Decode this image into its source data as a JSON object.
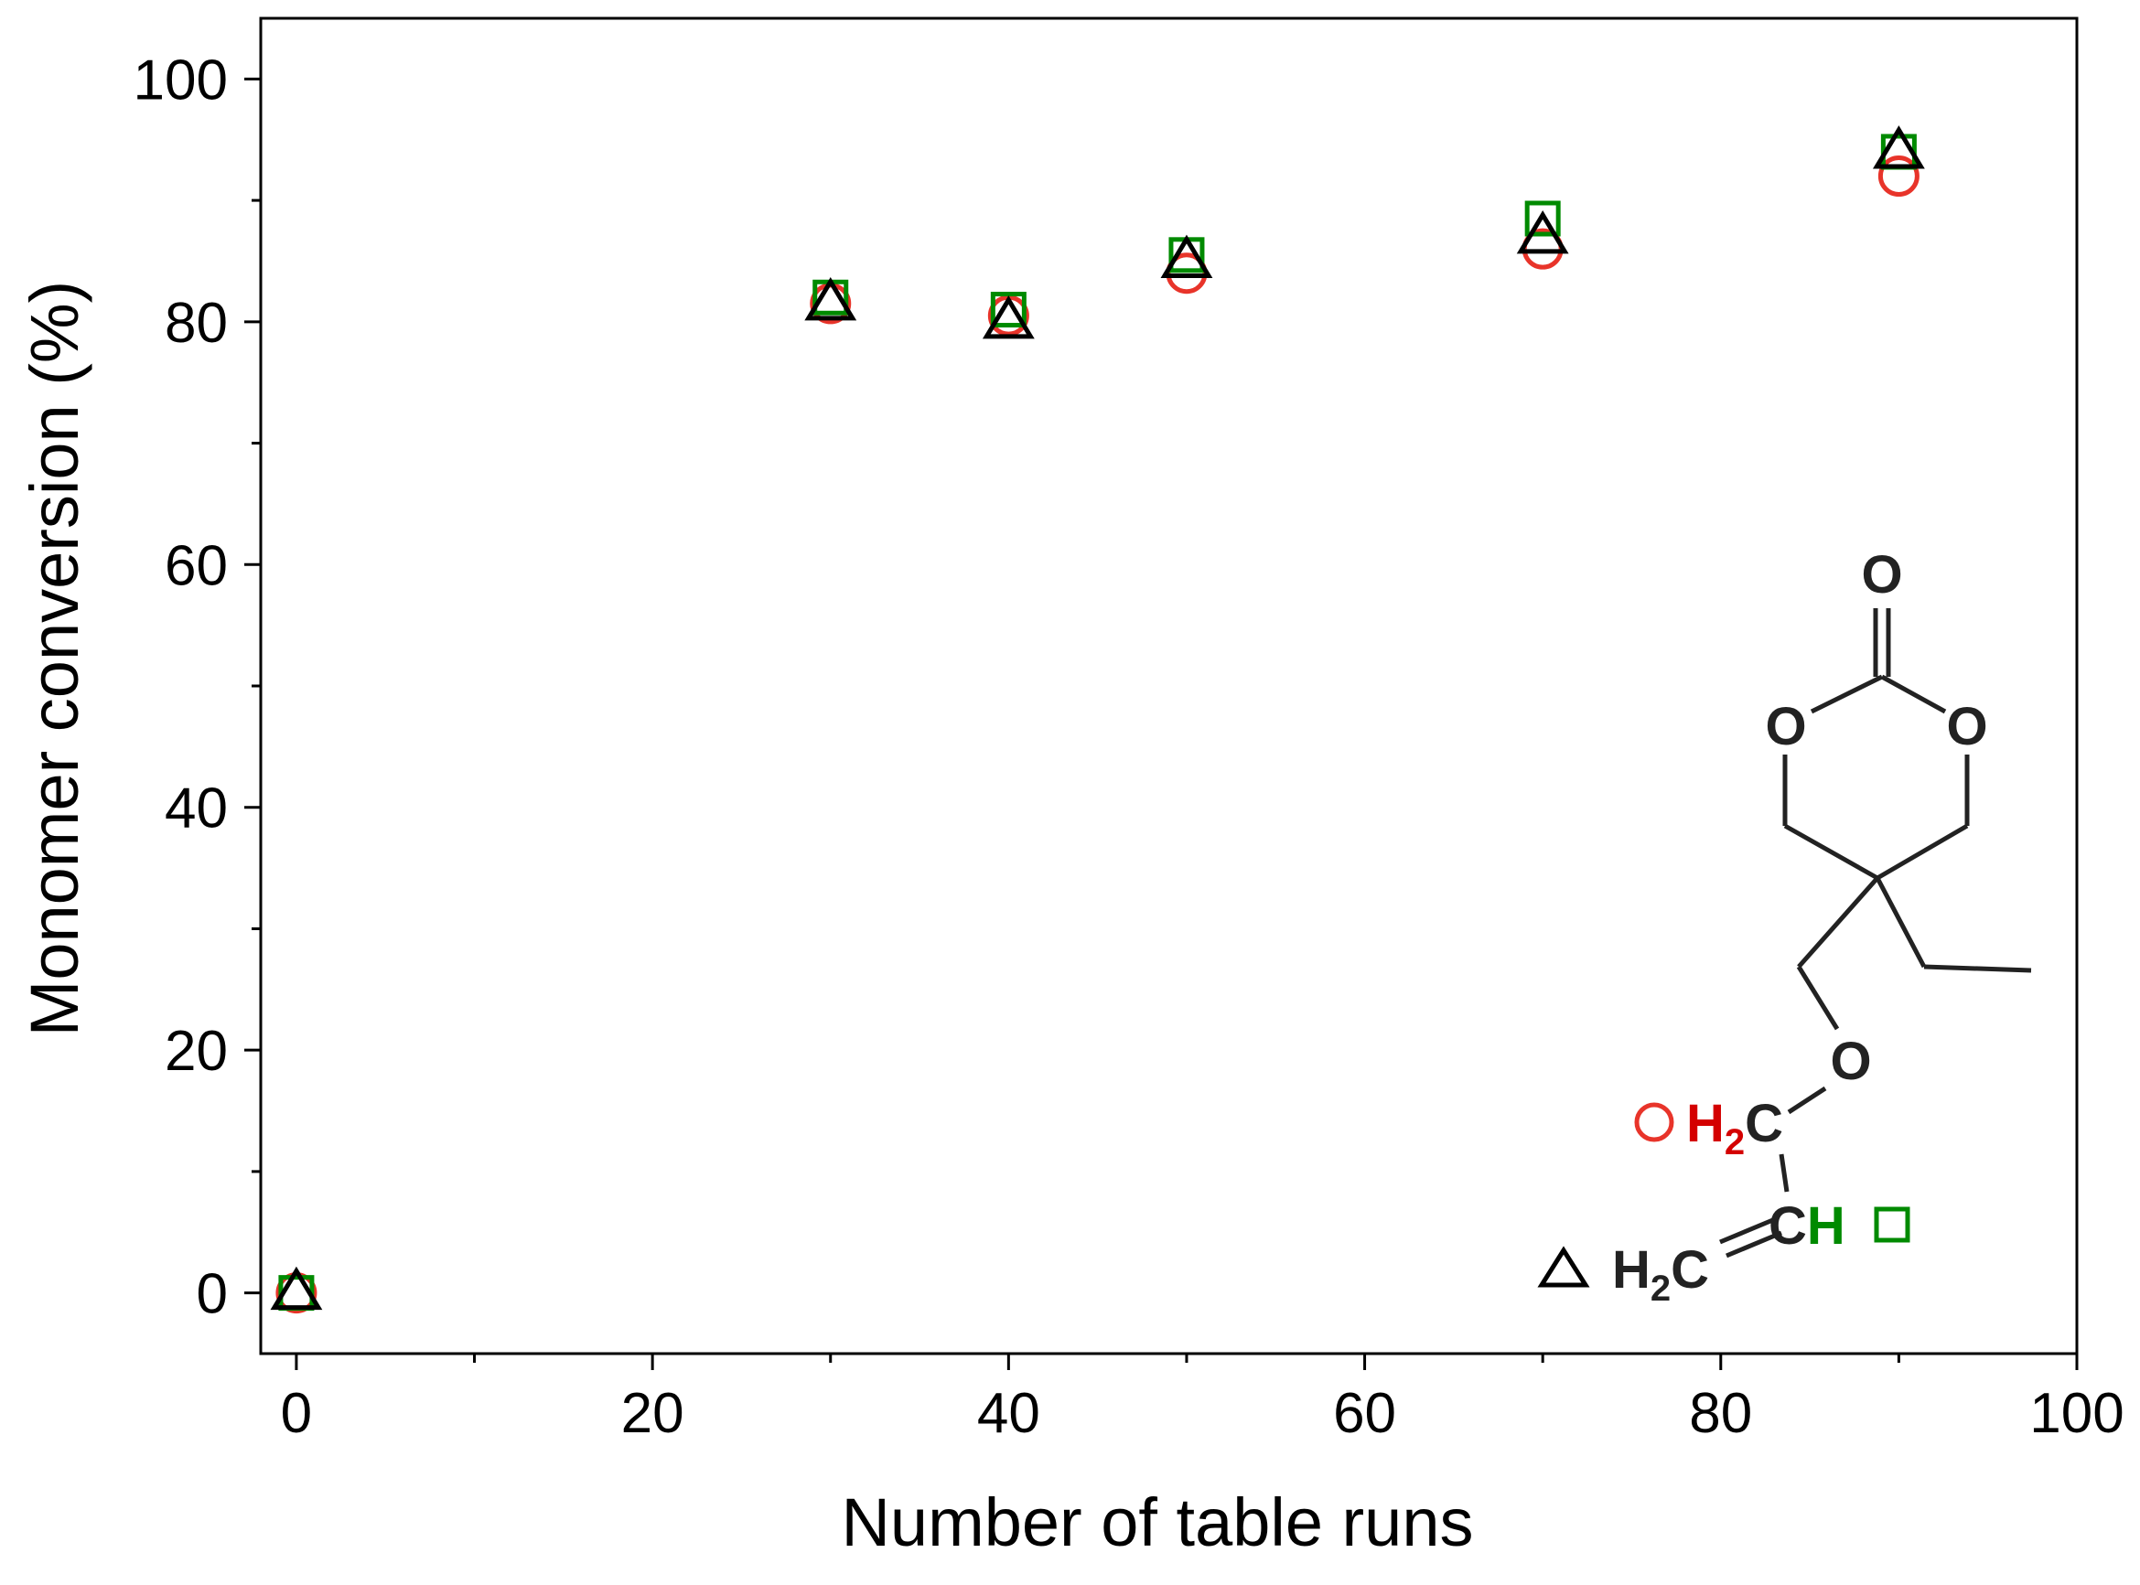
{
  "chart_data": {
    "type": "scatter",
    "xlabel": "Number of table runs",
    "ylabel": "Monomer conversion (%)",
    "xlim": [
      -2,
      100
    ],
    "ylim": [
      -5,
      105
    ],
    "xticks": [
      0,
      20,
      40,
      60,
      80,
      100
    ],
    "yticks": [
      0,
      20,
      40,
      60,
      80,
      100
    ],
    "grid": false,
    "legend": "none",
    "x": [
      0,
      30,
      40,
      50,
      70,
      90
    ],
    "series": [
      {
        "marker": "circle",
        "color": "#e8342a",
        "values": [
          0,
          81.5,
          80.5,
          84.0,
          86.0,
          92.0
        ]
      },
      {
        "marker": "square",
        "color": "#008a00",
        "values": [
          0,
          82.0,
          81.0,
          85.5,
          88.5,
          94.0
        ]
      },
      {
        "marker": "triangle",
        "color": "#000000",
        "values": [
          0,
          81.5,
          80.0,
          85.0,
          87.0,
          94.0
        ]
      }
    ]
  },
  "structure": {
    "atom_o_carbonyl": "O",
    "atom_o_ring_left": "O",
    "atom_o_ring_right": "O",
    "atom_o_ether": "O",
    "label_h2c_red": "H",
    "label_h2c_red_sub": "2",
    "label_h2c_red_c": "C",
    "label_ch_c": "C",
    "label_ch_h": "H",
    "label_h2c_black": "H",
    "label_h2c_black_sub": "2",
    "label_h2c_black_c": "C"
  }
}
